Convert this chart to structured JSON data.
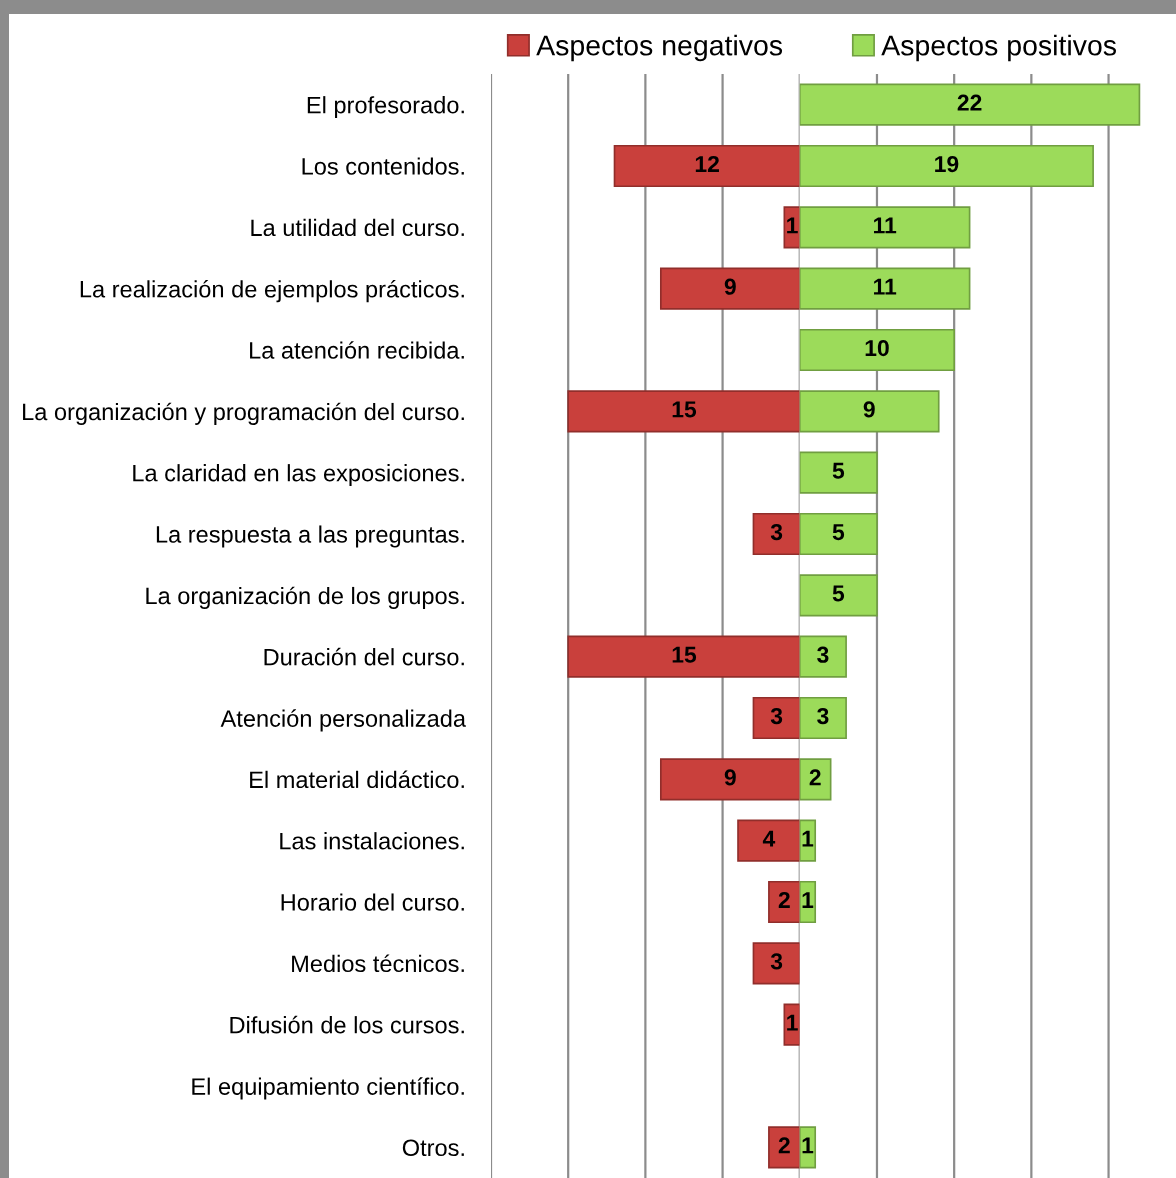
{
  "chart_data": [
    {
      "type": "bar",
      "orientation": "horizontal",
      "categories": [
        "El profesorado.",
        "Los contenidos.",
        "La utilidad del curso.",
        "La realización de ejemplos prácticos.",
        "La atención recibida.",
        "La organización y programación del curso.",
        "La claridad en las exposiciones.",
        "La respuesta a las preguntas.",
        "La organización de los grupos.",
        "Duración del curso.",
        "Atención personalizada",
        "El material didáctico.",
        "Las instalaciones.",
        "Horario del curso.",
        "Medios técnicos.",
        "Difusión de los cursos.",
        "El equipamiento científico.",
        "Otros."
      ],
      "series": [
        {
          "name": "Aspectos negativos",
          "color": "#c9403c",
          "values": [
            null,
            12,
            1,
            9,
            null,
            15,
            null,
            3,
            null,
            15,
            3,
            9,
            4,
            2,
            3,
            1,
            null,
            2
          ]
        }
      ],
      "xlim": [
        20,
        0
      ],
      "xticks": [
        {
          "value": 20,
          "label": null
        },
        {
          "value": 15,
          "label": null
        },
        {
          "value": 10,
          "label": null
        },
        {
          "value": 5,
          "label": null
        },
        {
          "value": 0,
          "label": null
        }
      ],
      "data_labels": true,
      "grid": "x",
      "legend": "top",
      "tick_labels": "y"
    },
    {
      "type": "bar",
      "orientation": "horizontal",
      "categories": [
        null,
        null,
        null,
        null,
        null,
        null,
        null,
        null,
        null,
        null,
        null,
        null,
        null,
        null,
        null,
        null,
        null,
        null
      ],
      "series": [
        {
          "name": "Aspectos positivos",
          "color": "#9cdb5a",
          "values": [
            22,
            19,
            11,
            11,
            10,
            9,
            5,
            5,
            5,
            3,
            3,
            2,
            1,
            1,
            null,
            null,
            null,
            1
          ]
        }
      ],
      "xticks": [
        {
          "value": 5,
          "label": null
        },
        {
          "value": 10,
          "label": null
        },
        {
          "value": 15,
          "label": null
        },
        {
          "value": 20,
          "label": null
        }
      ],
      "data_labels": true,
      "grid": "x",
      "legend": "top",
      "tick_labels": false
    }
  ]
}
